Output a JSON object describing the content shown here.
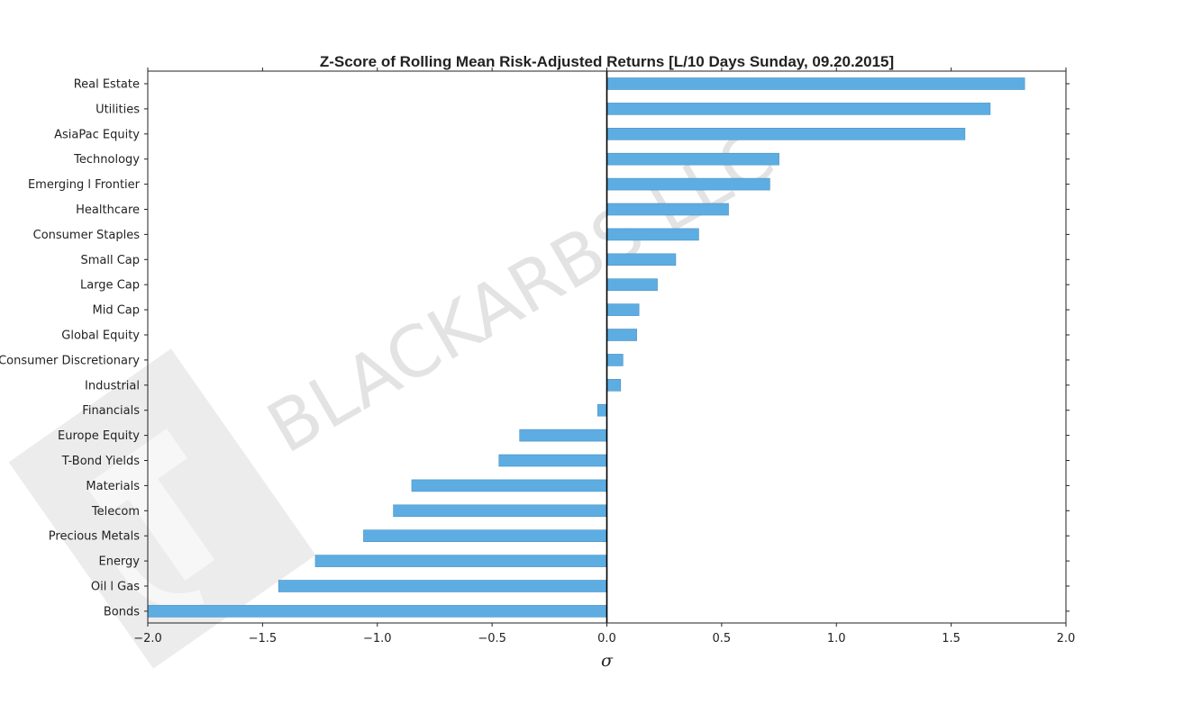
{
  "chart_data": {
    "type": "bar",
    "orientation": "horizontal",
    "title": "Z-Score of Rolling Mean Risk-Adjusted Returns [L/10 Days Sunday, 09.20.2015]",
    "xlabel": "σ",
    "ylabel": "",
    "xlim": [
      -2.0,
      2.0
    ],
    "xticks": [
      -2.0,
      -1.5,
      -1.0,
      -0.5,
      0.0,
      0.5,
      1.0,
      1.5,
      2.0
    ],
    "xtick_labels": [
      "−2.0",
      "−1.5",
      "−1.0",
      "−0.5",
      "0.0",
      "0.5",
      "1.0",
      "1.5",
      "2.0"
    ],
    "categories": [
      "Real Estate",
      "Utilities",
      "AsiaPac Equity",
      "Technology",
      "Emerging l Frontier",
      "Healthcare",
      "Consumer Staples",
      "Small Cap",
      "Large Cap",
      "Mid Cap",
      "Global Equity",
      "Consumer Discretionary",
      "Industrial",
      "Financials",
      "Europe Equity",
      "T-Bond Yields",
      "Materials",
      "Telecom",
      "Precious Metals",
      "Energy",
      "Oil l Gas",
      "Bonds"
    ],
    "values": [
      1.82,
      1.67,
      1.56,
      0.75,
      0.71,
      0.53,
      0.4,
      0.3,
      0.22,
      0.14,
      0.13,
      0.07,
      0.06,
      -0.04,
      -0.38,
      -0.47,
      -0.85,
      -0.93,
      -1.06,
      -1.27,
      -1.43,
      -2.0
    ],
    "bar_color": "#5dade2",
    "grid": false,
    "legend": "none"
  },
  "watermark": {
    "text": "BLACKARBS LLC",
    "logo": "blackarbs-logo"
  }
}
